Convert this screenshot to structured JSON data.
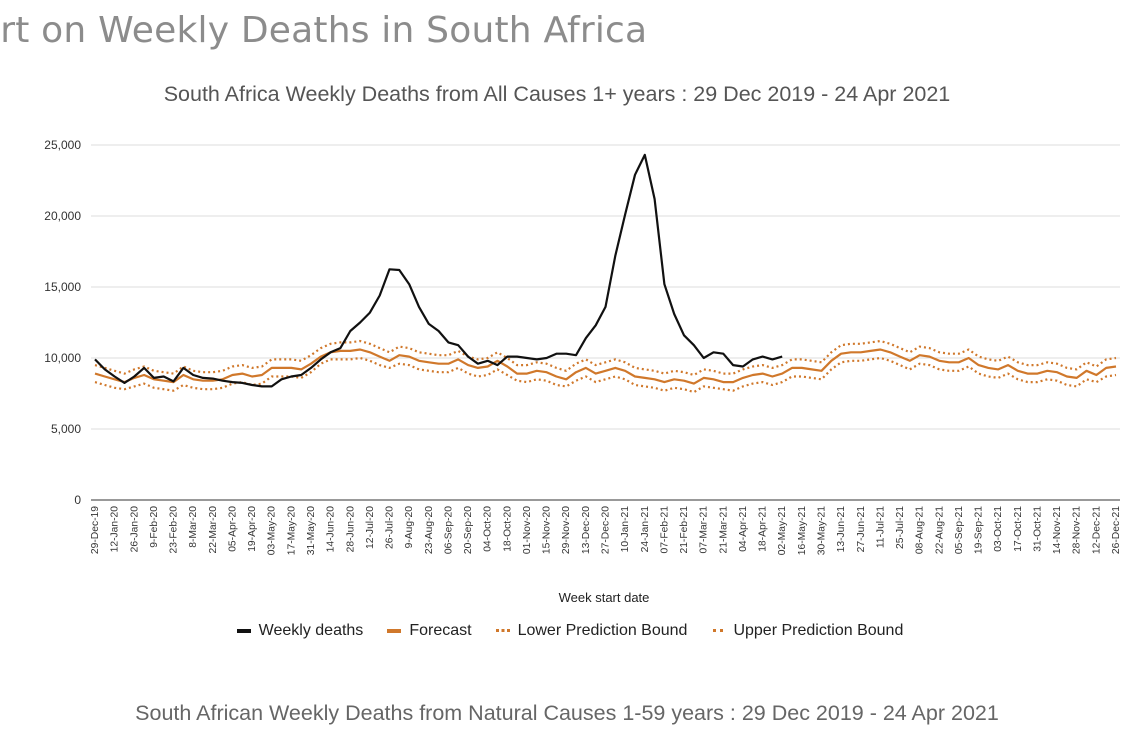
{
  "page": {
    "title": "ort on Weekly Deaths in South Africa",
    "next_chart_title": "South African Weekly Deaths from Natural Causes 1-59 years : 29 Dec 2019 - 24 Apr 2021"
  },
  "colors": {
    "weekly": "#111111",
    "forecast": "#d0782b",
    "bounds": "#d0782b",
    "grid": "#dddddd"
  },
  "chart_data": {
    "type": "line",
    "title": "South Africa Weekly Deaths from All Causes 1+ years : 29 Dec 2019 - 24 Apr 2021",
    "xlabel": "Week start date",
    "ylabel": "",
    "ylim": [
      0,
      25000
    ],
    "y_ticks": [
      0,
      5000,
      10000,
      15000,
      20000,
      25000
    ],
    "y_tick_labels": [
      "0",
      "5,000",
      "10,000",
      "15,000",
      "20,000",
      "25,000"
    ],
    "grid": "horizontal",
    "legend_position": "bottom",
    "x_week_count": 105,
    "x_tick_every": 2,
    "x_tick_labels": [
      "29-Dec-19",
      "12-Jan-20",
      "26-Jan-20",
      "9-Feb-20",
      "23-Feb-20",
      "8-Mar-20",
      "22-Mar-20",
      "05-Apr-20",
      "19-Apr-20",
      "03-May-20",
      "17-May-20",
      "31-May-20",
      "14-Jun-20",
      "28-Jun-20",
      "12-Jul-20",
      "26-Jul-20",
      "9-Aug-20",
      "23-Aug-20",
      "06-Sep-20",
      "20-Sep-20",
      "04-Oct-20",
      "18-Oct-20",
      "01-Nov-20",
      "15-Nov-20",
      "29-Nov-20",
      "13-Dec-20",
      "27-Dec-20",
      "10-Jan-21",
      "24-Jan-21",
      "07-Feb-21",
      "21-Feb-21",
      "07-Mar-21",
      "21-Mar-21",
      "04-Apr-21",
      "18-Apr-21",
      "02-May-21",
      "16-May-21",
      "30-May-21",
      "13-Jun-21",
      "27-Jun-21",
      "11-Jul-21",
      "25-Jul-21",
      "08-Aug-21",
      "22-Aug-21",
      "05-Sep-21",
      "19-Sep-21",
      "03-Oct-21",
      "17-Oct-21",
      "31-Oct-21",
      "14-Nov-21",
      "28-Nov-21",
      "12-Dec-21",
      "26-Dec-21"
    ],
    "series": [
      {
        "name": "Weekly deaths",
        "style": "solid-thick",
        "values": [
          9900,
          9200,
          8700,
          8250,
          8700,
          9300,
          8600,
          8700,
          8350,
          9300,
          8800,
          8600,
          8550,
          8400,
          8300,
          8250,
          8100,
          8000,
          8000,
          8500,
          8700,
          8800,
          9300,
          9900,
          10400,
          10700,
          11900,
          12500,
          13200,
          14400,
          16250,
          16200,
          15200,
          13600,
          12400,
          11900,
          11100,
          10900,
          10100,
          9600,
          9800,
          9500,
          10100,
          10100,
          10000,
          9900,
          10000,
          10300,
          10300,
          10200,
          11400,
          12300,
          13600,
          17200,
          20100,
          22900,
          24300,
          21200,
          15200,
          13100,
          11600,
          10900,
          10000,
          10400,
          10300,
          9500,
          9400,
          9900,
          10100,
          9900,
          10100
        ]
      },
      {
        "name": "Forecast",
        "style": "solid",
        "values": [
          8900,
          8700,
          8500,
          8300,
          8600,
          8800,
          8500,
          8400,
          8300,
          8800,
          8500,
          8400,
          8400,
          8500,
          8800,
          8900,
          8700,
          8800,
          9300,
          9300,
          9300,
          9200,
          9600,
          10100,
          10400,
          10500,
          10500,
          10600,
          10400,
          10100,
          9800,
          10200,
          10100,
          9800,
          9700,
          9600,
          9600,
          9900,
          9500,
          9300,
          9400,
          9800,
          9400,
          8900,
          8900,
          9100,
          9000,
          8700,
          8500,
          9000,
          9300,
          8900,
          9100,
          9300,
          9100,
          8700,
          8600,
          8500,
          8300,
          8500,
          8400,
          8200,
          8600,
          8500,
          8300,
          8300,
          8600,
          8800,
          8900,
          8700,
          8900,
          9300,
          9300,
          9200,
          9100,
          9800,
          10300,
          10400,
          10400,
          10500,
          10600,
          10400,
          10100,
          9800,
          10200,
          10100,
          9800,
          9700,
          9700,
          10000,
          9500,
          9300,
          9200,
          9500,
          9100,
          8900,
          8900,
          9100,
          9000,
          8700,
          8600,
          9100,
          8800,
          9300,
          9400
        ]
      },
      {
        "name": "Lower Prediction Bound",
        "style": "dotted",
        "values": [
          8300,
          8100,
          7900,
          7800,
          8000,
          8200,
          7900,
          7800,
          7700,
          8100,
          7900,
          7800,
          7800,
          7900,
          8200,
          8300,
          8100,
          8200,
          8700,
          8700,
          8700,
          8600,
          9000,
          9600,
          9900,
          9900,
          9900,
          10000,
          9800,
          9500,
          9300,
          9600,
          9500,
          9200,
          9100,
          9000,
          9000,
          9300,
          8900,
          8700,
          8800,
          9200,
          8800,
          8400,
          8300,
          8500,
          8400,
          8100,
          8000,
          8400,
          8700,
          8300,
          8500,
          8700,
          8500,
          8100,
          8000,
          7900,
          7700,
          7900,
          7800,
          7600,
          8000,
          7900,
          7800,
          7700,
          8000,
          8200,
          8300,
          8100,
          8300,
          8700,
          8700,
          8600,
          8500,
          9200,
          9700,
          9800,
          9800,
          9900,
          10000,
          9800,
          9500,
          9200,
          9600,
          9500,
          9200,
          9100,
          9100,
          9400,
          8900,
          8700,
          8600,
          8900,
          8500,
          8300,
          8300,
          8500,
          8400,
          8100,
          8000,
          8500,
          8300,
          8700,
          8800
        ]
      },
      {
        "name": "Upper Prediction Bound",
        "style": "dotted",
        "values": [
          9500,
          9300,
          9100,
          8900,
          9200,
          9400,
          9100,
          9000,
          8900,
          9400,
          9100,
          9000,
          9000,
          9100,
          9400,
          9500,
          9300,
          9400,
          9900,
          9900,
          9900,
          9800,
          10200,
          10700,
          11000,
          11100,
          11100,
          11200,
          11000,
          10700,
          10400,
          10800,
          10700,
          10400,
          10300,
          10200,
          10200,
          10500,
          10100,
          9900,
          10000,
          10400,
          10000,
          9500,
          9500,
          9700,
          9600,
          9300,
          9100,
          9600,
          9900,
          9500,
          9700,
          9900,
          9700,
          9300,
          9200,
          9100,
          8900,
          9100,
          9000,
          8800,
          9200,
          9100,
          8900,
          8900,
          9200,
          9400,
          9500,
          9300,
          9500,
          9900,
          9900,
          9800,
          9700,
          10400,
          10900,
          11000,
          11000,
          11100,
          11200,
          11000,
          10700,
          10400,
          10800,
          10700,
          10400,
          10300,
          10300,
          10600,
          10100,
          9900,
          9800,
          10100,
          9700,
          9500,
          9500,
          9700,
          9600,
          9300,
          9200,
          9700,
          9400,
          9900,
          10000
        ]
      }
    ]
  }
}
